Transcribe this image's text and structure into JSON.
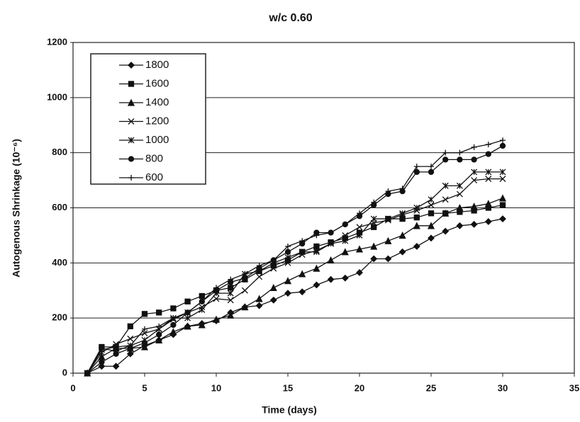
{
  "chart_data": {
    "type": "line",
    "title": "w/c 0.60",
    "x_label": "Time (days)",
    "y_label": "Autogenous Shrinkage (10⁻⁶)",
    "x": [
      1,
      2,
      3,
      4,
      5,
      6,
      7,
      8,
      9,
      10,
      11,
      12,
      13,
      14,
      15,
      16,
      17,
      18,
      19,
      20,
      21,
      22,
      23,
      24,
      25,
      26,
      27,
      28,
      29,
      30
    ],
    "series": [
      {
        "name": "1800",
        "color": "#111111",
        "marker": "diamond",
        "values": [
          0,
          25,
          25,
          70,
          100,
          120,
          140,
          170,
          180,
          190,
          220,
          240,
          245,
          265,
          290,
          295,
          320,
          340,
          345,
          365,
          415,
          415,
          440,
          460,
          490,
          515,
          535,
          540,
          550,
          560
        ]
      },
      {
        "name": "1600",
        "color": "#111111",
        "marker": "square",
        "values": [
          0,
          95,
          95,
          170,
          215,
          220,
          235,
          260,
          280,
          300,
          310,
          340,
          370,
          390,
          410,
          440,
          460,
          475,
          490,
          510,
          530,
          560,
          560,
          565,
          580,
          580,
          585,
          590,
          600,
          610
        ]
      },
      {
        "name": "1400",
        "color": "#111111",
        "marker": "triangle",
        "values": [
          0,
          60,
          90,
          90,
          95,
          120,
          150,
          170,
          175,
          195,
          210,
          240,
          270,
          310,
          335,
          360,
          380,
          410,
          440,
          450,
          460,
          480,
          500,
          535,
          535,
          580,
          600,
          605,
          615,
          635
        ]
      },
      {
        "name": "1200",
        "color": "#111111",
        "marker": "x",
        "values": [
          0,
          75,
          105,
          125,
          145,
          160,
          195,
          220,
          240,
          270,
          265,
          300,
          350,
          380,
          400,
          430,
          445,
          470,
          500,
          530,
          545,
          555,
          575,
          590,
          610,
          630,
          650,
          700,
          705,
          705
        ]
      },
      {
        "name": "1000",
        "color": "#111111",
        "marker": "star",
        "values": [
          0,
          85,
          95,
          100,
          120,
          160,
          200,
          200,
          230,
          290,
          290,
          360,
          370,
          400,
          420,
          440,
          440,
          470,
          480,
          500,
          560,
          560,
          580,
          600,
          630,
          680,
          680,
          730,
          730,
          730
        ]
      },
      {
        "name": "800",
        "color": "#111111",
        "marker": "circle",
        "values": [
          0,
          40,
          70,
          90,
          110,
          140,
          175,
          220,
          260,
          300,
          330,
          345,
          380,
          410,
          440,
          470,
          510,
          510,
          540,
          570,
          610,
          650,
          660,
          730,
          730,
          775,
          775,
          775,
          795,
          825
        ]
      },
      {
        "name": "600",
        "color": "#111111",
        "marker": "plus",
        "values": [
          0,
          90,
          80,
          100,
          160,
          170,
          200,
          220,
          260,
          310,
          340,
          360,
          390,
          410,
          460,
          480,
          500,
          510,
          540,
          580,
          620,
          660,
          670,
          750,
          750,
          800,
          800,
          820,
          830,
          845
        ]
      }
    ],
    "xlim": [
      0,
      35
    ],
    "xticks": [
      0,
      5,
      10,
      15,
      20,
      25,
      30,
      35
    ],
    "ylim": [
      0,
      1200
    ],
    "yticks": [
      0,
      200,
      400,
      600,
      800,
      1000,
      1200
    ],
    "grid": true
  }
}
